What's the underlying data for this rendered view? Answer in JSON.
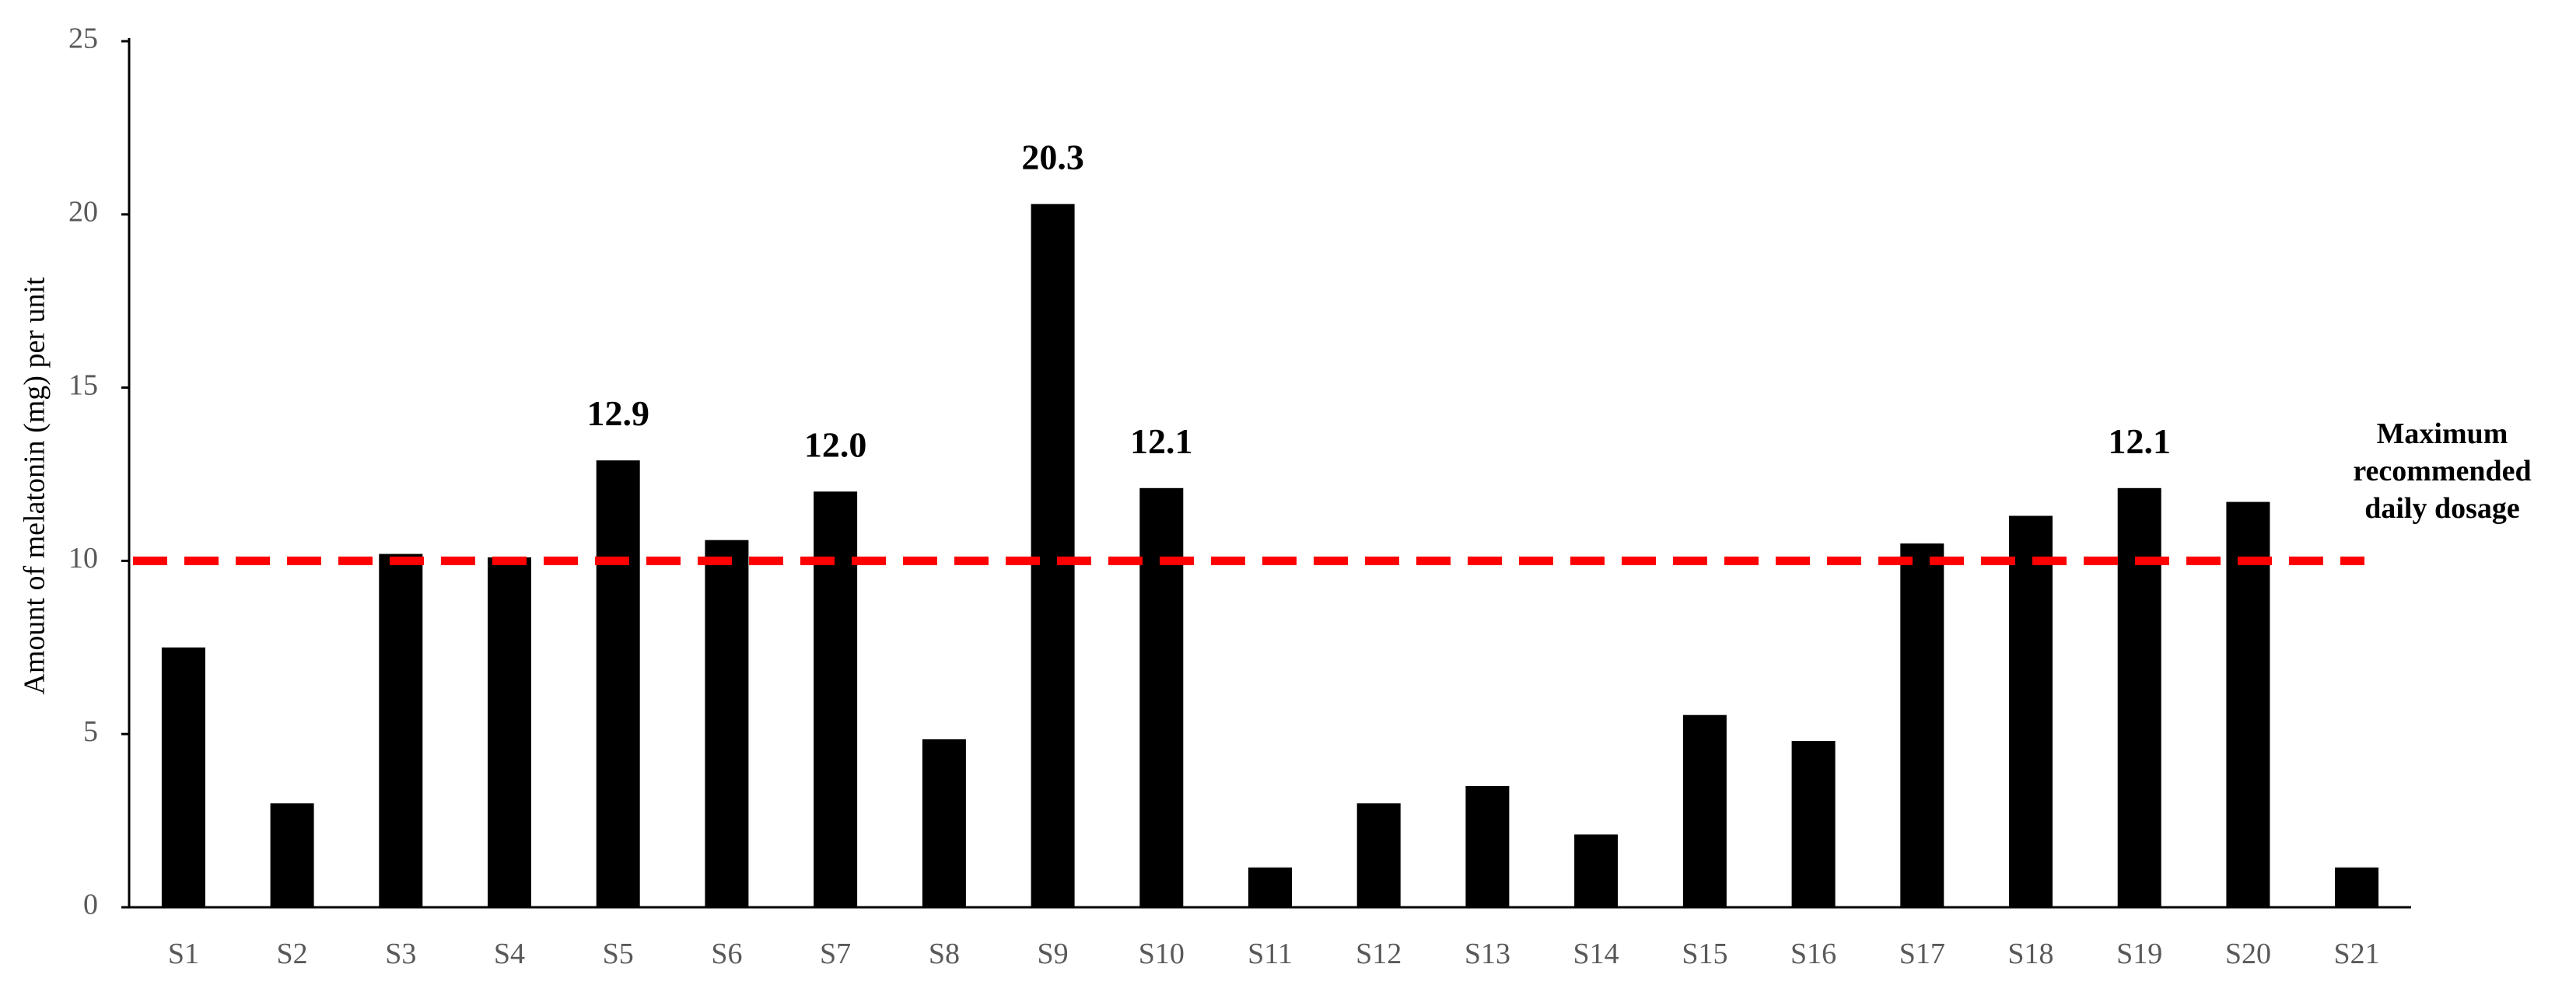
{
  "chart_data": {
    "type": "bar",
    "title": "",
    "xlabel": "",
    "ylabel": "Amount of melatonin (mg) per unit",
    "ylim": [
      0,
      25
    ],
    "yticks": [
      0,
      5,
      10,
      15,
      20,
      25
    ],
    "grid": false,
    "categories": [
      "S1",
      "S2",
      "S3",
      "S4",
      "S5",
      "S6",
      "S7",
      "S8",
      "S9",
      "S10",
      "S11",
      "S12",
      "S13",
      "S14",
      "S15",
      "S16",
      "S17",
      "S18",
      "S19",
      "S20",
      "S21"
    ],
    "values": [
      7.5,
      3.0,
      10.2,
      10.1,
      12.9,
      10.6,
      12.0,
      4.85,
      20.3,
      12.1,
      1.15,
      3.0,
      3.5,
      2.1,
      5.55,
      4.8,
      10.5,
      11.3,
      12.1,
      11.7,
      1.15
    ],
    "bar_color": "#000000",
    "data_labels": [
      {
        "category": "S5",
        "text": "12.9"
      },
      {
        "category": "S7",
        "text": "12.0"
      },
      {
        "category": "S9",
        "text": "20.3"
      },
      {
        "category": "S10",
        "text": "12.1"
      },
      {
        "category": "S19",
        "text": "12.1"
      }
    ],
    "reference_line": {
      "value": 10,
      "style": "dashed",
      "color": "#ff0000",
      "label_lines": [
        "Maximum",
        "recommended",
        "daily dosage"
      ]
    }
  }
}
